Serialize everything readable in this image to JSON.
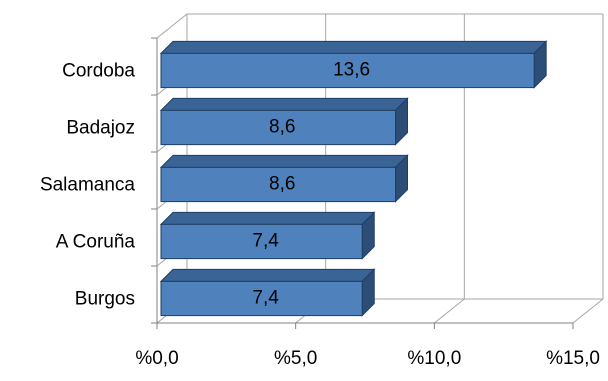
{
  "chart_data": {
    "type": "bar",
    "orientation": "horizontal",
    "style": "3d-clustered",
    "categories": [
      "Cordoba",
      "Badajoz",
      "Salamanca",
      "A Coruña",
      "Burgos"
    ],
    "values": [
      13.6,
      8.6,
      8.6,
      7.4,
      7.4
    ],
    "data_labels": [
      "13,6",
      "8,6",
      "8,6",
      "7,4",
      "7,4"
    ],
    "xlim": [
      0,
      15
    ],
    "x_ticks": [
      0,
      5,
      10,
      15
    ],
    "x_tick_labels": [
      "%0,0",
      "%5,0",
      "%10,0",
      "%15,0"
    ],
    "grid": "vertical",
    "legend": "none",
    "colors": {
      "bar_front": "#4f81bd",
      "bar_top": "#3a6396",
      "bar_side": "#2c4d76",
      "bar_edge": "#1f3f66",
      "grid": "#a6a6a6",
      "axis": "#808080"
    }
  }
}
